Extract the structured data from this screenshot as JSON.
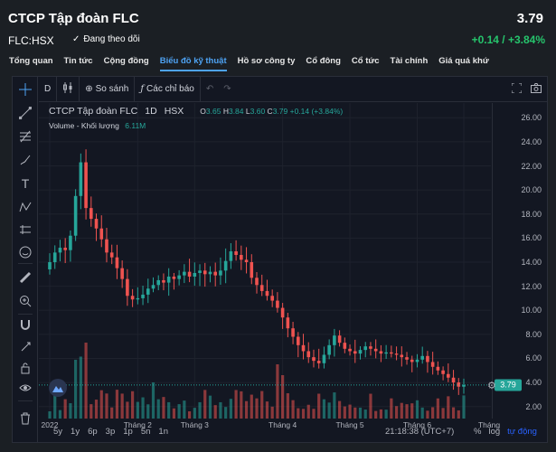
{
  "header": {
    "title": "CTCP Tập đoàn FLC",
    "price": "3.79",
    "ticker": "FLC:HSX",
    "follow_label": "Đang theo dõi",
    "change": "+0.14 / +3.84%",
    "change_color": "#26c46c"
  },
  "tabs": [
    {
      "label": "Tổng quan",
      "active": false
    },
    {
      "label": "Tin tức",
      "active": false
    },
    {
      "label": "Cộng đồng",
      "active": false
    },
    {
      "label": "Biểu đồ kỹ thuật",
      "active": true
    },
    {
      "label": "Hồ sơ công ty",
      "active": false
    },
    {
      "label": "Cổ đông",
      "active": false
    },
    {
      "label": "Cổ tức",
      "active": false
    },
    {
      "label": "Tài chính",
      "active": false
    },
    {
      "label": "Giá quá khứ",
      "active": false
    }
  ],
  "toolbar": {
    "interval": "D",
    "compare": "So sánh",
    "indicators": "Các chỉ báo"
  },
  "legend": {
    "symbol": "CTCP Tập đoàn FLC",
    "interval": "1D",
    "exchange": "HSX",
    "o_label": "O",
    "o": "3.65",
    "h_label": "H",
    "h": "3.84",
    "l_label": "L",
    "l": "3.60",
    "c_label": "C",
    "c": "3.79",
    "chg": "+0.14 (+3.84%)",
    "volume_label": "Volume - Khối lượng",
    "volume": "6.11M"
  },
  "bottom": {
    "ranges": [
      "5y",
      "1y",
      "6p",
      "3p",
      "1p",
      "5n",
      "1n"
    ],
    "time": "21:18:38 (UTC+7)",
    "pct": "%",
    "log": "log",
    "auto": "tự động"
  },
  "colors": {
    "up": "#26a69a",
    "down": "#ef5350",
    "accent": "#4ea3f4",
    "background": "#131722"
  },
  "chart_data": {
    "type": "candlestick",
    "title": "CTCP Tập đoàn FLC 1D HSX",
    "last_price": "3.79",
    "y_ticks": [
      "26.00",
      "24.00",
      "22.00",
      "20.00",
      "18.00",
      "16.00",
      "14.00",
      "12.00",
      "10.00",
      "8.00",
      "6.00",
      "4.00",
      "2.00"
    ],
    "x_ticks": [
      "2022",
      "Tháng 2",
      "Tháng 3",
      "Tháng 4",
      "Tháng 5",
      "Tháng 6",
      "Tháng"
    ],
    "ylim": [
      1,
      27
    ],
    "closes": [
      14.0,
      14.8,
      15.2,
      15.0,
      16.2,
      19.5,
      22.3,
      18.5,
      17.6,
      16.8,
      15.9,
      14.8,
      14.4,
      13.5,
      12.6,
      11.2,
      10.9,
      11.0,
      11.3,
      11.8,
      12.1,
      12.5,
      12.3,
      12.8,
      12.6,
      12.9,
      13.2,
      12.8,
      13.1,
      13.3,
      13.0,
      13.2,
      12.9,
      13.3,
      14.1,
      14.9,
      14.6,
      14.2,
      14.0,
      12.7,
      12.1,
      11.6,
      11.2,
      10.8,
      10.2,
      9.4,
      8.5,
      7.8,
      7.1,
      6.6,
      6.1,
      5.8,
      5.6,
      6.3,
      7.1,
      7.9,
      7.3,
      6.8,
      6.6,
      6.4,
      6.7,
      7.0,
      6.8,
      6.6,
      6.4,
      6.5,
      6.4,
      6.3,
      6.1,
      5.9,
      5.7,
      5.9,
      6.2,
      5.7,
      5.3,
      5.0,
      4.7,
      4.4,
      4.0,
      3.65,
      3.79
    ],
    "volume_max_m": 45
  }
}
